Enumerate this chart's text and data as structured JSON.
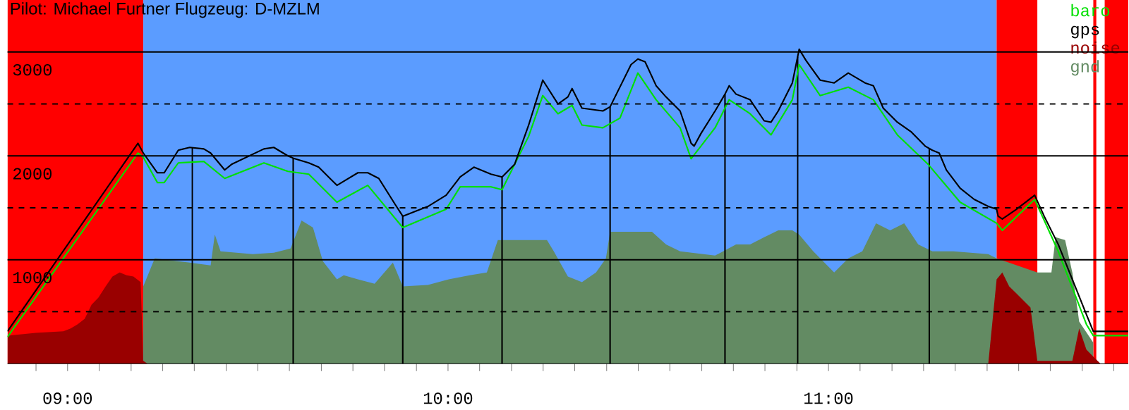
{
  "chart_data": {
    "type": "line",
    "title": "Pilot: Michael Furtner Flugzeug: D-MZLM",
    "xlim": [
      8.842,
      11.788
    ],
    "ylim": [
      0,
      3500
    ],
    "xticks": [
      {
        "value": 8.917,
        "label": null
      },
      {
        "value": 9,
        "label": "09:00"
      },
      {
        "value": 9.083,
        "label": null
      },
      {
        "value": 9.167,
        "label": null
      },
      {
        "value": 9.25,
        "label": null
      },
      {
        "value": 9.333,
        "label": null
      },
      {
        "value": 9.417,
        "label": null
      },
      {
        "value": 9.5,
        "label": null
      },
      {
        "value": 9.583,
        "label": null
      },
      {
        "value": 9.667,
        "label": null
      },
      {
        "value": 9.75,
        "label": null
      },
      {
        "value": 9.833,
        "label": null
      },
      {
        "value": 9.917,
        "label": null
      },
      {
        "value": 10,
        "label": "10:00"
      },
      {
        "value": 10.083,
        "label": null
      },
      {
        "value": 10.167,
        "label": null
      },
      {
        "value": 10.25,
        "label": null
      },
      {
        "value": 10.333,
        "label": null
      },
      {
        "value": 10.417,
        "label": null
      },
      {
        "value": 10.5,
        "label": null
      },
      {
        "value": 10.583,
        "label": null
      },
      {
        "value": 10.667,
        "label": null
      },
      {
        "value": 10.75,
        "label": null
      },
      {
        "value": 10.833,
        "label": null
      },
      {
        "value": 10.917,
        "label": null
      },
      {
        "value": 11,
        "label": "11:00"
      },
      {
        "value": 11.083,
        "label": null
      },
      {
        "value": 11.167,
        "label": null
      },
      {
        "value": 11.25,
        "label": null
      },
      {
        "value": 11.333,
        "label": null
      },
      {
        "value": 11.417,
        "label": null
      },
      {
        "value": 11.5,
        "label": null
      },
      {
        "value": 11.583,
        "label": null
      },
      {
        "value": 11.667,
        "label": null
      },
      {
        "value": 11.75,
        "label": null
      }
    ],
    "yticks": [
      {
        "value": 500,
        "label": null
      },
      1000,
      {
        "value": 1500,
        "label": null
      },
      2000,
      {
        "value": 2500,
        "label": null
      },
      3000
    ],
    "grid": "y",
    "legend": "top right",
    "bands": [
      {
        "axis": "x",
        "from": 8.842,
        "to": 9.199,
        "label": null,
        "color": "#ff0000"
      },
      {
        "axis": "x",
        "from": 9.199,
        "to": 11.442,
        "label": null,
        "color": "#5b9cff"
      },
      {
        "axis": "x",
        "from": 11.442,
        "to": 11.549,
        "label": null,
        "color": "#ff0000"
      },
      {
        "axis": "x",
        "from": 11.696,
        "to": 11.704,
        "label": null,
        "color": "#ff0000"
      },
      {
        "axis": "x",
        "from": 11.726,
        "to": 11.788,
        "label": null,
        "color": "#ff0000"
      }
    ],
    "ref_lines": [
      {
        "axis": "x",
        "value": 9.328,
        "label": null,
        "color": "#000000"
      },
      {
        "axis": "x",
        "value": 9.593,
        "label": null,
        "color": "#000000"
      },
      {
        "axis": "x",
        "value": 9.881,
        "label": null,
        "color": "#000000"
      },
      {
        "axis": "x",
        "value": 10.142,
        "label": null,
        "color": "#000000"
      },
      {
        "axis": "x",
        "value": 10.426,
        "label": null,
        "color": "#000000"
      },
      {
        "axis": "x",
        "value": 10.728,
        "label": null,
        "color": "#000000"
      },
      {
        "axis": "x",
        "value": 10.919,
        "label": null,
        "color": "#000000"
      },
      {
        "axis": "x",
        "value": 11.265,
        "label": null,
        "color": "#000000"
      }
    ],
    "series": [
      {
        "name": "baro",
        "color": "#00e000",
        "x": [
          8.842,
          9.185,
          9.199,
          9.236,
          9.254,
          9.291,
          9.358,
          9.413,
          9.516,
          9.579,
          9.634,
          9.708,
          9.789,
          9.881,
          9.995,
          10.032,
          10.113,
          10.142,
          10.212,
          10.249,
          10.289,
          10.326,
          10.352,
          10.407,
          10.452,
          10.499,
          10.547,
          10.61,
          10.639,
          10.702,
          10.739,
          10.794,
          10.849,
          10.905,
          10.923,
          10.978,
          11.052,
          11.118,
          11.181,
          11.262,
          11.346,
          11.442,
          11.457,
          11.542,
          11.604,
          11.678,
          11.696,
          11.788
        ],
        "values": [
          257,
          2027,
          1986,
          1743,
          1743,
          1932,
          1946,
          1783,
          1932,
          1851,
          1824,
          1554,
          1716,
          1310,
          1486,
          1702,
          1702,
          1675,
          2189,
          2580,
          2405,
          2486,
          2297,
          2270,
          2364,
          2797,
          2540,
          2270,
          1972,
          2270,
          2540,
          2405,
          2202,
          2540,
          2878,
          2580,
          2661,
          2540,
          2202,
          1918,
          1554,
          1351,
          1283,
          1581,
          1081,
          378,
          270,
          270
        ]
      },
      {
        "name": "gps",
        "color": "#000000",
        "x": [
          8.842,
          9.185,
          9.199,
          9.236,
          9.254,
          9.291,
          9.321,
          9.358,
          9.376,
          9.413,
          9.431,
          9.516,
          9.542,
          9.579,
          9.597,
          9.634,
          9.66,
          9.708,
          9.763,
          9.789,
          9.818,
          9.862,
          9.881,
          9.947,
          9.995,
          10.032,
          10.068,
          10.113,
          10.142,
          10.175,
          10.212,
          10.249,
          10.289,
          10.315,
          10.326,
          10.352,
          10.407,
          10.426,
          10.481,
          10.499,
          10.518,
          10.547,
          10.573,
          10.61,
          10.639,
          10.647,
          10.665,
          10.702,
          10.728,
          10.739,
          10.757,
          10.794,
          10.831,
          10.849,
          10.868,
          10.905,
          10.923,
          10.941,
          10.978,
          11.015,
          11.052,
          11.096,
          11.118,
          11.144,
          11.181,
          11.218,
          11.254,
          11.273,
          11.291,
          11.31,
          11.346,
          11.383,
          11.42,
          11.442,
          11.446,
          11.457,
          11.494,
          11.542,
          11.567,
          11.604,
          11.641,
          11.678,
          11.696,
          11.788
        ],
        "values": [
          311,
          2121,
          2027,
          1837,
          1837,
          2054,
          2081,
          2067,
          2027,
          1864,
          1918,
          2067,
          2081,
          2000,
          1972,
          1932,
          1891,
          1716,
          1837,
          1837,
          1783,
          1527,
          1419,
          1513,
          1621,
          1797,
          1891,
          1824,
          1797,
          1918,
          2297,
          2729,
          2499,
          2567,
          2648,
          2459,
          2432,
          2472,
          2878,
          2932,
          2905,
          2675,
          2567,
          2432,
          2121,
          2094,
          2216,
          2432,
          2594,
          2675,
          2594,
          2540,
          2337,
          2324,
          2432,
          2702,
          3026,
          2918,
          2729,
          2702,
          2797,
          2702,
          2675,
          2459,
          2324,
          2229,
          2094,
          2054,
          2027,
          1864,
          1689,
          1581,
          1513,
          1486,
          1419,
          1392,
          1486,
          1621,
          1419,
          1148,
          811,
          473,
          311,
          311
        ]
      },
      {
        "name": "noise",
        "type": "area",
        "color": "#990000",
        "x": [
          8.842,
          8.916,
          8.989,
          9.008,
          9.026,
          9.045,
          9.063,
          9.081,
          9.1,
          9.118,
          9.137,
          9.155,
          9.173,
          9.192,
          9.199,
          9.21,
          11.42,
          11.442,
          11.457,
          11.475,
          11.494,
          11.531,
          11.549,
          11.641,
          11.659,
          11.678,
          11.696,
          11.715
        ],
        "values": [
          270,
          297,
          311,
          338,
          378,
          432,
          567,
          635,
          743,
          838,
          878,
          851,
          838,
          784,
          27,
          0,
          0,
          811,
          878,
          743,
          676,
          540,
          27,
          27,
          338,
          135,
          68,
          0
        ]
      },
      {
        "name": "gnd",
        "type": "area",
        "color": "#638b63",
        "x": [
          9.199,
          9.229,
          9.321,
          9.376,
          9.387,
          9.402,
          9.487,
          9.542,
          9.586,
          9.615,
          9.645,
          9.671,
          9.708,
          9.726,
          9.763,
          9.807,
          9.855,
          9.881,
          9.947,
          10.002,
          10.057,
          10.102,
          10.131,
          10.186,
          10.26,
          10.278,
          10.315,
          10.352,
          10.389,
          10.415,
          10.426,
          10.536,
          10.573,
          10.61,
          10.702,
          10.757,
          10.794,
          10.831,
          10.868,
          10.905,
          10.923,
          10.96,
          11.015,
          11.052,
          11.089,
          11.125,
          11.162,
          11.199,
          11.236,
          11.273,
          11.328,
          11.42,
          11.442,
          11.549,
          11.586,
          11.597,
          11.622,
          11.641,
          11.659,
          11.696
        ],
        "values": [
          743,
          1013,
          973,
          946,
          1243,
          1081,
          1054,
          1067,
          1108,
          1378,
          1310,
          986,
          811,
          851,
          811,
          770,
          973,
          743,
          757,
          811,
          851,
          878,
          1189,
          1189,
          1189,
          1081,
          838,
          784,
          878,
          1013,
          1270,
          1270,
          1148,
          1081,
          1040,
          1148,
          1148,
          1216,
          1283,
          1283,
          1243,
          1081,
          878,
          1013,
          1081,
          1351,
          1283,
          1351,
          1148,
          1081,
          1081,
          1054,
          1013,
          878,
          878,
          1216,
          1189,
          878,
          405,
          203
        ]
      }
    ]
  }
}
